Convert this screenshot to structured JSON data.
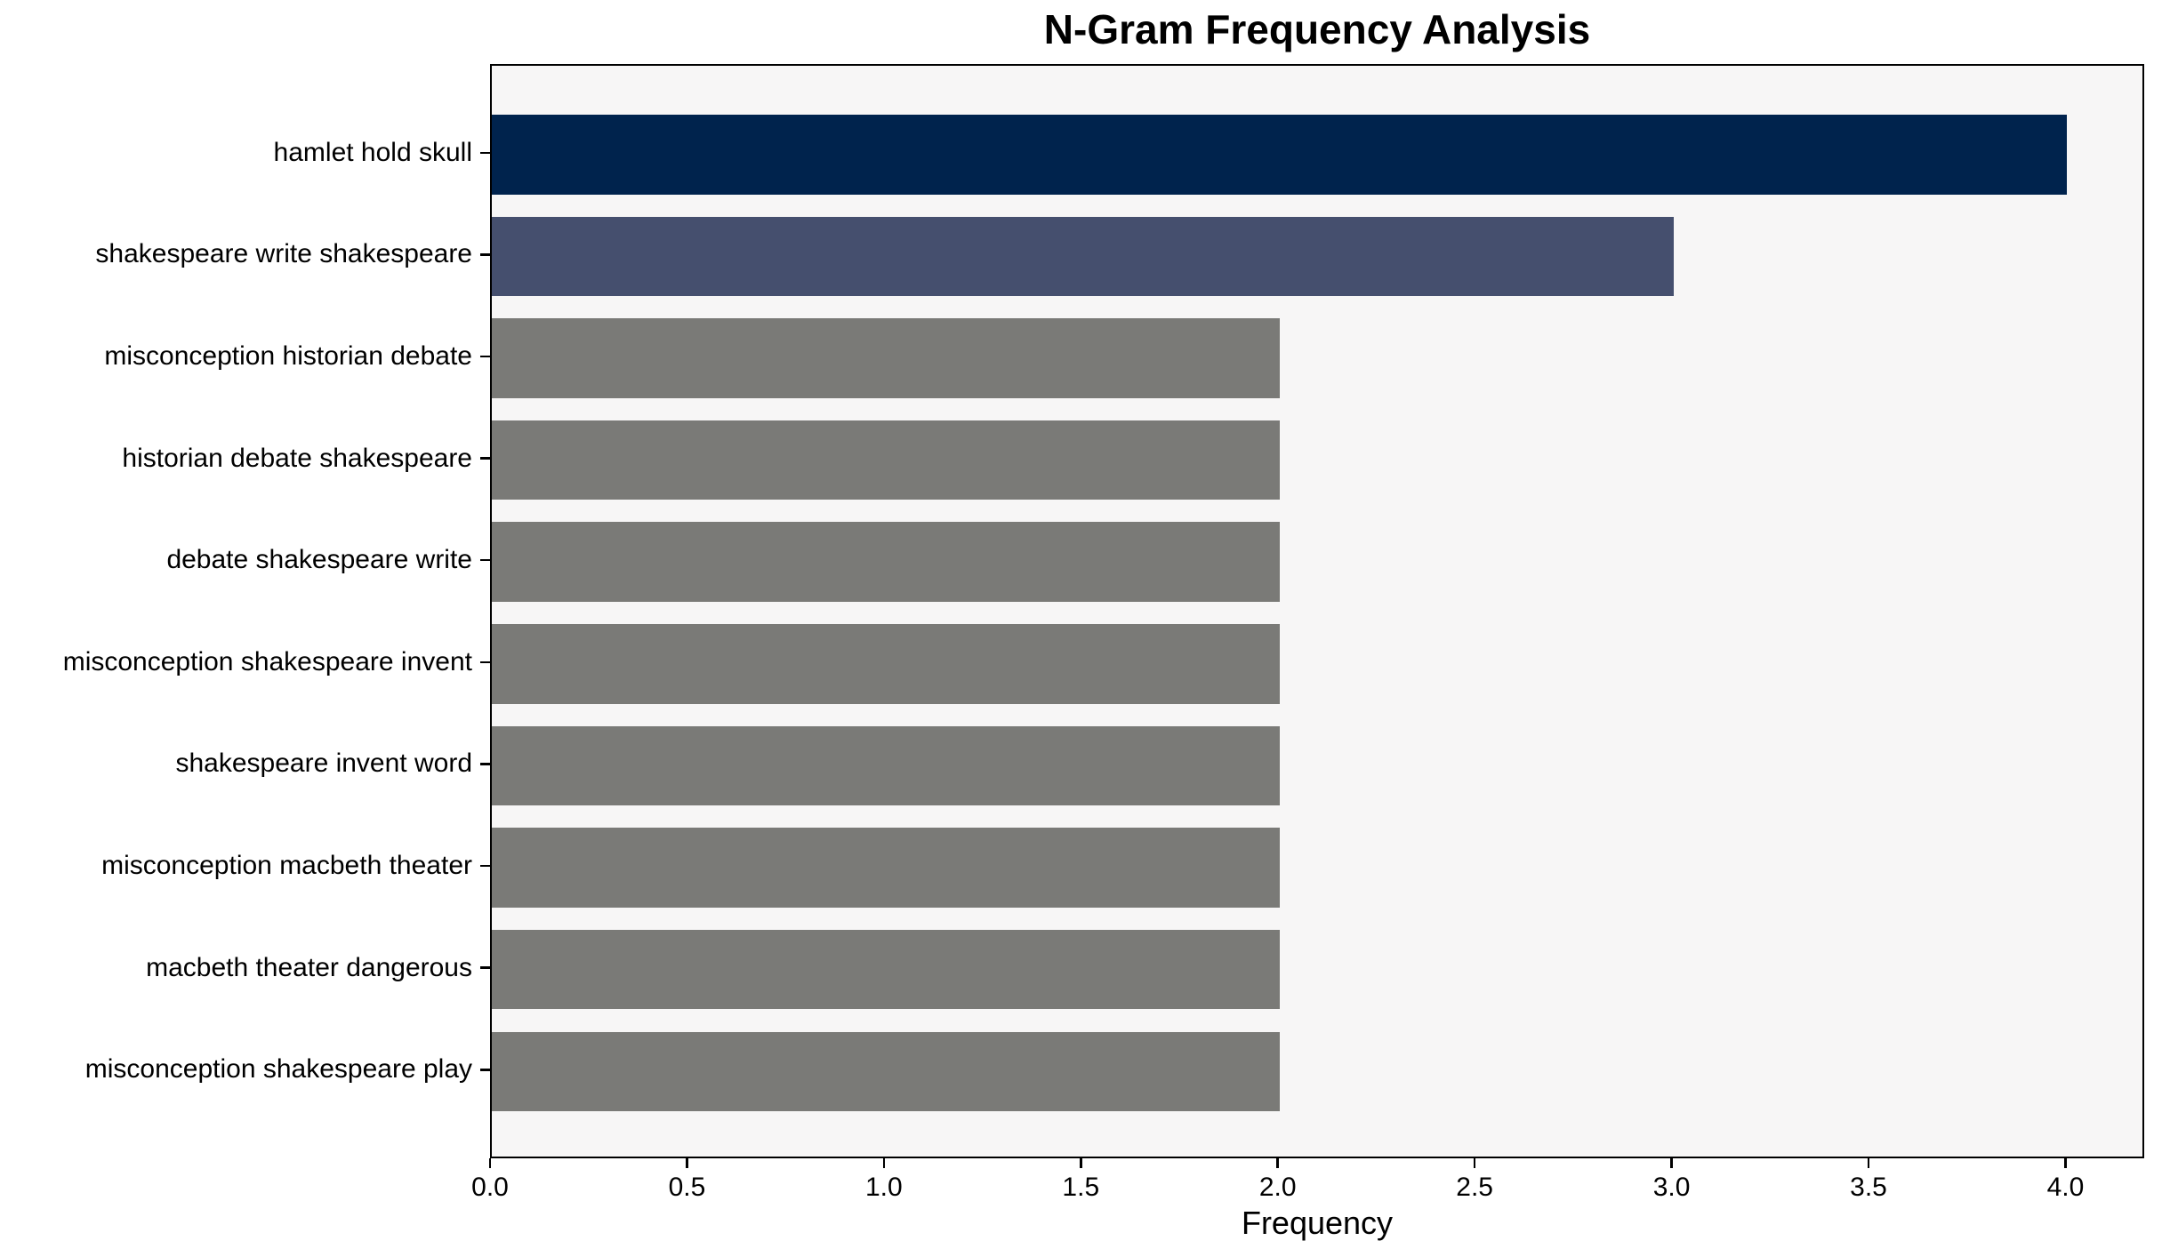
{
  "chart_data": {
    "type": "bar",
    "orientation": "horizontal",
    "title": "N-Gram Frequency Analysis",
    "xlabel": "Frequency",
    "ylabel": "",
    "categories": [
      "hamlet hold skull",
      "shakespeare write shakespeare",
      "misconception historian debate",
      "historian debate shakespeare",
      "debate shakespeare write",
      "misconception shakespeare invent",
      "shakespeare invent word",
      "misconception macbeth theater",
      "macbeth theater dangerous",
      "misconception shakespeare play"
    ],
    "values": [
      4,
      3,
      2,
      2,
      2,
      2,
      2,
      2,
      2,
      2
    ],
    "bar_colors": [
      "#00234d",
      "#454f6e",
      "#7a7a77",
      "#7a7a77",
      "#7a7a77",
      "#7a7a77",
      "#7a7a77",
      "#7a7a77",
      "#7a7a77",
      "#7a7a77"
    ],
    "xlim": [
      0,
      4.2
    ],
    "xticks": [
      0.0,
      0.5,
      1.0,
      1.5,
      2.0,
      2.5,
      3.0,
      3.5,
      4.0
    ],
    "xtick_labels": [
      "0.0",
      "0.5",
      "1.0",
      "1.5",
      "2.0",
      "2.5",
      "3.0",
      "3.5",
      "4.0"
    ],
    "grid": false,
    "legend_position": "none",
    "colors": {
      "plot_background": "#f7f6f6",
      "figure_background": "#ffffff",
      "axis": "#000000",
      "text": "#000000"
    }
  }
}
